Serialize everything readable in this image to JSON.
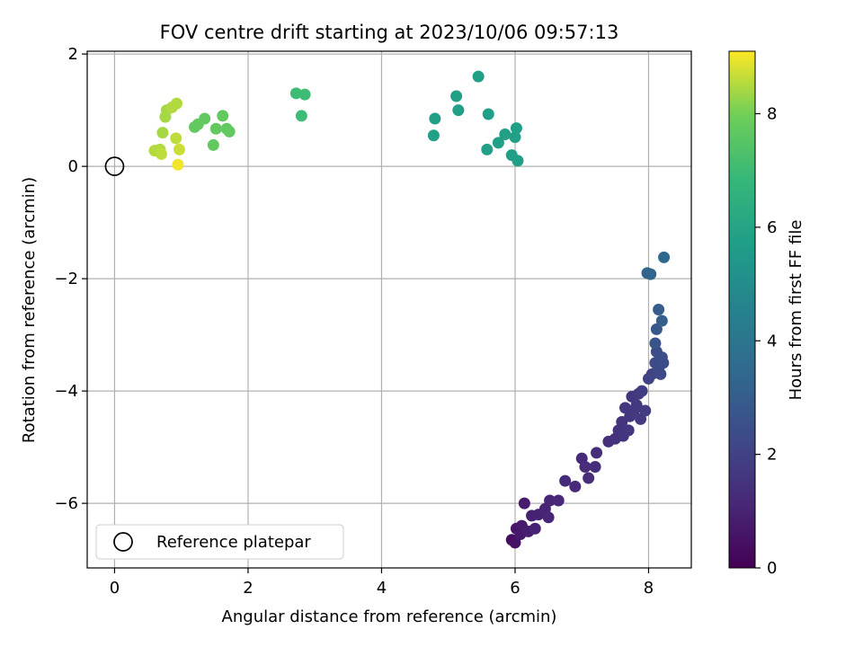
{
  "chart_data": {
    "type": "scatter",
    "title": "FOV centre drift starting at 2023/10/06 09:57:13",
    "xlabel": "Angular distance from reference (arcmin)",
    "ylabel": "Rotation from reference (arcmin)",
    "colorbar_label": "Hours from first FF file",
    "xlim": [
      -0.41,
      8.64
    ],
    "ylim": [
      -7.15,
      2.05
    ],
    "xticks": [
      0,
      2,
      4,
      6,
      8
    ],
    "yticks": [
      -6,
      -4,
      -2,
      0,
      2
    ],
    "colorbar_range": [
      0,
      9.1
    ],
    "colorbar_ticks": [
      0,
      2,
      4,
      6,
      8
    ],
    "colormap": "viridis",
    "grid": true,
    "legend": {
      "position": "lower-left",
      "entries": [
        {
          "label": "Reference platepar",
          "marker": "open-circle"
        }
      ]
    },
    "reference_point": {
      "x": 0,
      "y": 0
    },
    "series": [
      {
        "points": [
          [
            5.95,
            -6.65
          ],
          [
            6.0,
            -6.7
          ],
          [
            6.02,
            -6.45
          ],
          [
            6.08,
            -6.55
          ],
          [
            6.1,
            -6.4
          ],
          [
            6.14,
            -6.0
          ],
          [
            6.2,
            -6.5
          ],
          [
            6.25,
            -6.22
          ],
          [
            6.3,
            -6.45
          ],
          [
            6.35,
            -6.2
          ],
          [
            6.45,
            -6.1
          ],
          [
            6.5,
            -6.25
          ],
          [
            6.52,
            -5.95
          ],
          [
            6.65,
            -5.95
          ],
          [
            6.75,
            -5.6
          ],
          [
            6.9,
            -5.7
          ],
          [
            7.0,
            -5.2
          ],
          [
            7.05,
            -5.35
          ],
          [
            7.1,
            -5.55
          ],
          [
            7.2,
            -5.35
          ],
          [
            7.22,
            -5.1
          ],
          [
            7.4,
            -4.9
          ],
          [
            7.5,
            -4.85
          ],
          [
            7.55,
            -4.7
          ],
          [
            7.6,
            -4.55
          ],
          [
            7.62,
            -4.8
          ],
          [
            7.65,
            -4.3
          ],
          [
            7.7,
            -4.7
          ],
          [
            7.72,
            -4.45
          ],
          [
            7.75,
            -4.1
          ],
          [
            7.78,
            -4.35
          ],
          [
            7.82,
            -4.25
          ],
          [
            7.85,
            -4.05
          ],
          [
            7.88,
            -4.5
          ],
          [
            7.9,
            -4.0
          ],
          [
            7.95,
            -4.35
          ],
          [
            8.0,
            -3.78
          ],
          [
            8.05,
            -3.7
          ],
          [
            8.1,
            -3.5
          ],
          [
            8.12,
            -3.3
          ],
          [
            8.15,
            -3.6
          ],
          [
            8.18,
            -3.7
          ],
          [
            8.2,
            -3.4
          ],
          [
            8.22,
            -3.5
          ],
          [
            8.1,
            -3.15
          ],
          [
            8.12,
            -2.9
          ],
          [
            8.15,
            -2.55
          ],
          [
            8.2,
            -2.75
          ],
          [
            7.98,
            -1.9
          ],
          [
            8.03,
            -1.92
          ],
          [
            8.23,
            -1.62
          ],
          [
            4.78,
            0.55
          ],
          [
            4.8,
            0.85
          ],
          [
            5.12,
            1.25
          ],
          [
            5.15,
            1.0
          ],
          [
            5.45,
            1.6
          ],
          [
            5.58,
            0.3
          ],
          [
            5.6,
            0.93
          ],
          [
            5.75,
            0.42
          ],
          [
            5.85,
            0.57
          ],
          [
            5.95,
            0.2
          ],
          [
            6.0,
            0.52
          ],
          [
            6.02,
            0.68
          ],
          [
            6.04,
            0.1
          ],
          [
            2.72,
            1.3
          ],
          [
            2.8,
            0.9
          ],
          [
            2.85,
            1.28
          ],
          [
            1.2,
            0.7
          ],
          [
            1.25,
            0.75
          ],
          [
            1.35,
            0.85
          ],
          [
            1.48,
            0.38
          ],
          [
            1.52,
            0.67
          ],
          [
            1.62,
            0.9
          ],
          [
            1.68,
            0.67
          ],
          [
            1.72,
            0.62
          ],
          [
            0.6,
            0.28
          ],
          [
            0.68,
            0.3
          ],
          [
            0.7,
            0.22
          ],
          [
            0.72,
            0.6
          ],
          [
            0.76,
            0.88
          ],
          [
            0.78,
            1.0
          ],
          [
            0.86,
            1.05
          ],
          [
            0.92,
            0.5
          ],
          [
            0.93,
            1.12
          ],
          [
            0.95,
            0.03
          ],
          [
            0.97,
            0.3
          ]
        ],
        "hours": [
          0.4,
          0.5,
          0.6,
          0.7,
          0.75,
          0.8,
          0.85,
          0.9,
          0.95,
          1.0,
          1.05,
          1.1,
          1.1,
          1.15,
          1.2,
          1.2,
          1.25,
          1.3,
          1.3,
          1.35,
          1.35,
          1.4,
          1.45,
          1.5,
          1.55,
          1.55,
          1.6,
          1.6,
          1.65,
          1.65,
          1.7,
          1.7,
          1.75,
          1.75,
          1.8,
          1.8,
          2.0,
          2.1,
          2.3,
          2.4,
          2.3,
          2.2,
          2.5,
          2.4,
          2.6,
          2.8,
          3.0,
          3.1,
          3.3,
          3.3,
          3.4,
          5.8,
          5.8,
          5.8,
          5.8,
          5.8,
          5.8,
          5.8,
          5.8,
          5.8,
          5.8,
          5.8,
          5.8,
          5.8,
          7.0,
          7.0,
          7.0,
          7.7,
          7.7,
          7.7,
          7.7,
          7.7,
          7.7,
          7.7,
          7.7,
          8.5,
          8.5,
          8.6,
          8.4,
          8.4,
          8.4,
          8.5,
          8.6,
          8.5,
          9.0,
          8.7
        ]
      }
    ]
  }
}
